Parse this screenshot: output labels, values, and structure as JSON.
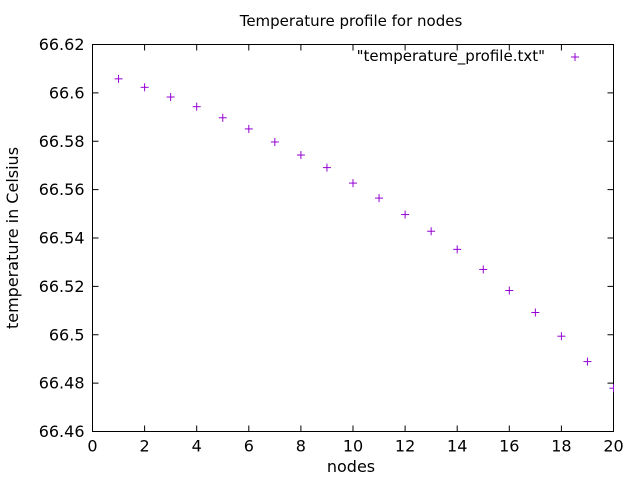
{
  "chart_data": {
    "type": "scatter",
    "title": "Temperature profile for nodes",
    "xlabel": "nodes",
    "ylabel": "temperature in Celsius",
    "xlim": [
      0,
      20
    ],
    "ylim": [
      66.46,
      66.62
    ],
    "xticks": [
      "0",
      "2",
      "4",
      "6",
      "8",
      "10",
      "12",
      "14",
      "16",
      "18",
      "20"
    ],
    "yticks": [
      "66.46",
      "66.48",
      "66.5",
      "66.52",
      "66.54",
      "66.56",
      "66.58",
      "66.6",
      "66.62"
    ],
    "grid": false,
    "legend_position": "top-right",
    "colors": {
      "series": "#9400d3",
      "axis": "#000000"
    },
    "marker": "plus",
    "series": [
      {
        "name": "\"temperature_profile.txt\"",
        "x": [
          1,
          2,
          3,
          4,
          5,
          6,
          7,
          8,
          9,
          10,
          11,
          12,
          13,
          14,
          15,
          16,
          17,
          18,
          19,
          20
        ],
        "values": [
          66.6058,
          66.6023,
          66.5983,
          66.5943,
          66.5897,
          66.5851,
          66.5797,
          66.5743,
          66.5691,
          66.5627,
          66.5565,
          66.5497,
          66.5428,
          66.5353,
          66.527,
          66.5183,
          66.5092,
          66.4994,
          66.4889,
          66.4779
        ]
      }
    ]
  }
}
